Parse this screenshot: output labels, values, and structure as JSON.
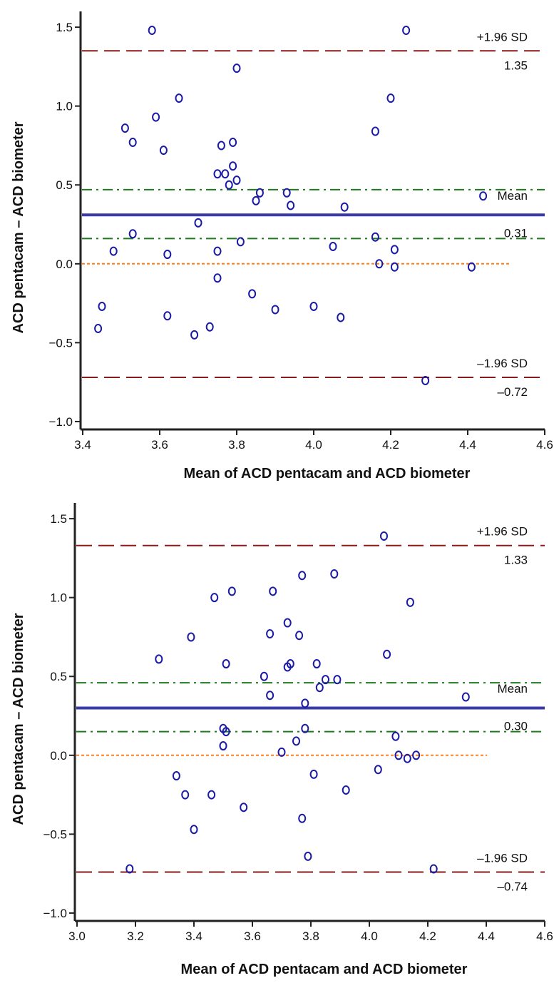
{
  "chart_data": [
    {
      "type": "scatter",
      "xlabel": "Mean of ACD pentacam and ACD biometer",
      "ylabel": "ACD pentacam – ACD biometer",
      "xlim": [
        3.4,
        4.6
      ],
      "ylim": [
        -1.05,
        1.6
      ],
      "x_ticks": [
        3.4,
        3.6,
        3.8,
        4.0,
        4.2,
        4.4,
        4.6
      ],
      "x_tick_labels": [
        "3.4",
        "3.6",
        "3.8",
        "4.0",
        "4.2",
        "4.4",
        "4.6"
      ],
      "y_ticks": [
        -1.0,
        -0.5,
        0.0,
        0.5,
        1.0,
        1.5
      ],
      "y_tick_labels": [
        "−1.0",
        "−0.5",
        "0.0",
        "0.5",
        "1.0",
        "1.5"
      ],
      "grid": false,
      "mean": 0.31,
      "upper_loa": 1.35,
      "lower_loa": -0.72,
      "mean_ci": [
        0.16,
        0.47
      ],
      "labels": {
        "upper": "+1.96 SD",
        "upper_value": "1.35",
        "mean": "Mean",
        "mean_value": "0.31",
        "lower": "–1.96 SD",
        "lower_value": "–0.72"
      },
      "colors": {
        "points": "#1a1aa6",
        "mean": "#3a3aa8",
        "loa": "#8b1a1a",
        "ci": "#1f7a1f",
        "zero": "#ff7f1e"
      },
      "points": [
        [
          3.44,
          -0.41
        ],
        [
          3.45,
          -0.27
        ],
        [
          3.48,
          0.08
        ],
        [
          3.51,
          0.86
        ],
        [
          3.53,
          0.77
        ],
        [
          3.53,
          0.19
        ],
        [
          3.58,
          1.48
        ],
        [
          3.59,
          0.93
        ],
        [
          3.61,
          0.72
        ],
        [
          3.62,
          0.06
        ],
        [
          3.62,
          -0.33
        ],
        [
          3.65,
          1.05
        ],
        [
          3.69,
          -0.45
        ],
        [
          3.7,
          0.26
        ],
        [
          3.73,
          -0.4
        ],
        [
          3.75,
          0.08
        ],
        [
          3.75,
          -0.09
        ],
        [
          3.75,
          0.57
        ],
        [
          3.76,
          0.75
        ],
        [
          3.77,
          0.57
        ],
        [
          3.78,
          0.5
        ],
        [
          3.79,
          0.62
        ],
        [
          3.79,
          0.77
        ],
        [
          3.8,
          0.53
        ],
        [
          3.8,
          1.24
        ],
        [
          3.81,
          0.14
        ],
        [
          3.84,
          -0.19
        ],
        [
          3.85,
          0.4
        ],
        [
          3.86,
          0.45
        ],
        [
          3.9,
          -0.29
        ],
        [
          3.93,
          0.45
        ],
        [
          3.94,
          0.37
        ],
        [
          4.0,
          -0.27
        ],
        [
          4.05,
          0.11
        ],
        [
          4.07,
          -0.34
        ],
        [
          4.08,
          0.36
        ],
        [
          4.16,
          0.17
        ],
        [
          4.16,
          0.84
        ],
        [
          4.17,
          0.0
        ],
        [
          4.2,
          1.05
        ],
        [
          4.21,
          -0.02
        ],
        [
          4.21,
          0.09
        ],
        [
          4.24,
          1.48
        ],
        [
          4.29,
          -0.74
        ],
        [
          4.41,
          -0.02
        ],
        [
          4.44,
          0.43
        ]
      ]
    },
    {
      "type": "scatter",
      "xlabel": "Mean of ACD pentacam and ACD biometer",
      "ylabel": "ACD pentacam – ACD biometer",
      "xlim": [
        3.0,
        4.6
      ],
      "ylim": [
        -1.05,
        1.6
      ],
      "x_ticks": [
        3.0,
        3.2,
        3.4,
        3.6,
        3.8,
        4.0,
        4.2,
        4.4,
        4.6
      ],
      "x_tick_labels": [
        "3.0",
        "3.2",
        "3.4",
        "3.6",
        "3.8",
        "4.0",
        "4.2",
        "4.4",
        "4.6"
      ],
      "y_ticks": [
        -1.0,
        -0.5,
        0.0,
        0.5,
        1.0,
        1.5
      ],
      "y_tick_labels": [
        "−1.0",
        "−0.5",
        "0.0",
        "0.5",
        "1.0",
        "1.5"
      ],
      "grid": false,
      "mean": 0.3,
      "upper_loa": 1.33,
      "lower_loa": -0.74,
      "mean_ci": [
        0.15,
        0.46
      ],
      "labels": {
        "upper": "+1.96 SD",
        "upper_value": "1.33",
        "mean": "Mean",
        "mean_value": "0.30",
        "lower": "–1.96 SD",
        "lower_value": "–0.74"
      },
      "colors": {
        "points": "#1a1aa6",
        "mean": "#3a3aa8",
        "loa": "#8b1a1a",
        "ci": "#1f7a1f",
        "zero": "#ff7f1e"
      },
      "points": [
        [
          3.18,
          -0.72
        ],
        [
          3.28,
          0.61
        ],
        [
          3.34,
          -0.13
        ],
        [
          3.37,
          -0.25
        ],
        [
          3.39,
          0.75
        ],
        [
          3.4,
          -0.47
        ],
        [
          3.46,
          -0.25
        ],
        [
          3.47,
          1.0
        ],
        [
          3.5,
          0.17
        ],
        [
          3.5,
          0.06
        ],
        [
          3.51,
          0.15
        ],
        [
          3.51,
          0.58
        ],
        [
          3.53,
          1.04
        ],
        [
          3.57,
          -0.33
        ],
        [
          3.64,
          0.5
        ],
        [
          3.66,
          0.38
        ],
        [
          3.66,
          0.77
        ],
        [
          3.67,
          1.04
        ],
        [
          3.7,
          0.02
        ],
        [
          3.72,
          0.84
        ],
        [
          3.72,
          0.56
        ],
        [
          3.73,
          0.58
        ],
        [
          3.75,
          0.09
        ],
        [
          3.76,
          0.76
        ],
        [
          3.77,
          -0.4
        ],
        [
          3.77,
          1.14
        ],
        [
          3.78,
          0.33
        ],
        [
          3.78,
          0.17
        ],
        [
          3.79,
          -0.64
        ],
        [
          3.81,
          -0.12
        ],
        [
          3.82,
          0.58
        ],
        [
          3.83,
          0.43
        ],
        [
          3.85,
          0.48
        ],
        [
          3.88,
          1.15
        ],
        [
          3.89,
          0.48
        ],
        [
          3.92,
          -0.22
        ],
        [
          4.03,
          -0.09
        ],
        [
          4.05,
          1.39
        ],
        [
          4.06,
          0.64
        ],
        [
          4.09,
          0.12
        ],
        [
          4.1,
          0.0
        ],
        [
          4.13,
          -0.02
        ],
        [
          4.14,
          0.97
        ],
        [
          4.16,
          0.0
        ],
        [
          4.22,
          -0.72
        ],
        [
          4.33,
          0.37
        ]
      ]
    }
  ]
}
